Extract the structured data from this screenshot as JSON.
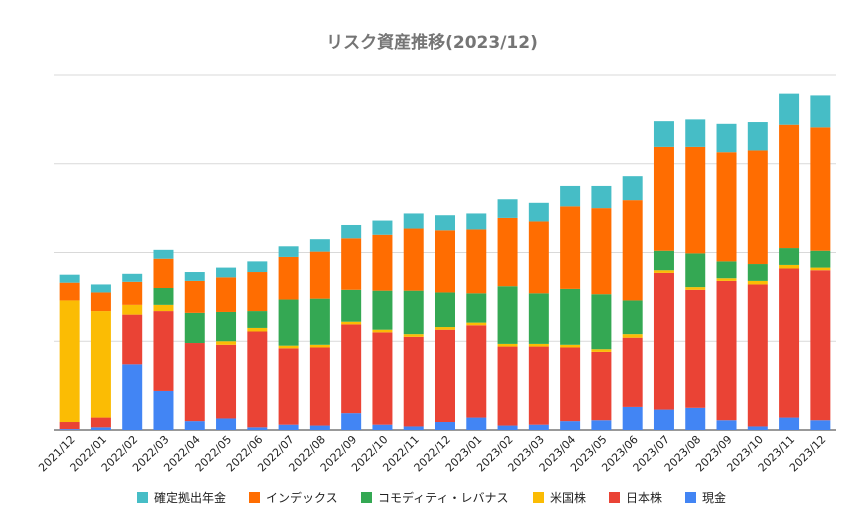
{
  "chart_data": {
    "type": "bar",
    "stacked": true,
    "title": "リスク資産推移(2023/12)",
    "y_axis_labels": "hidden",
    "grid": true,
    "legend_position": "bottom",
    "ylim": [
      0,
      400
    ],
    "categories": [
      "2021/12",
      "2022/01",
      "2022/02",
      "2022/03",
      "2022/04",
      "2022/05",
      "2022/06",
      "2022/07",
      "2022/08",
      "2022/09",
      "2022/10",
      "2022/11",
      "2022/12",
      "2023/01",
      "2023/02",
      "2023/03",
      "2023/04",
      "2023/05",
      "2023/06",
      "2023/07",
      "2023/08",
      "2023/09",
      "2023/10",
      "2023/11",
      "2023/12"
    ],
    "series": [
      {
        "name": "現金",
        "color": "#4285f4",
        "values": [
          1,
          3,
          74,
          44,
          10,
          13,
          3,
          6,
          5,
          19,
          6,
          4,
          9,
          14,
          5,
          6,
          10,
          11,
          26,
          23,
          25,
          11,
          4,
          14,
          11
        ]
      },
      {
        "name": "日本株",
        "color": "#ea4335",
        "values": [
          8,
          11,
          56,
          90,
          88,
          83,
          108,
          86,
          88,
          100,
          104,
          101,
          104,
          104,
          89,
          88,
          83,
          77,
          78,
          154,
          133,
          157,
          160,
          168,
          169
        ]
      },
      {
        "name": "米国株",
        "color": "#fbbc04",
        "values": [
          137,
          120,
          11,
          7,
          0,
          4,
          4,
          3,
          3,
          3,
          3,
          3,
          3,
          3,
          3,
          3,
          3,
          3,
          4,
          3,
          3,
          3,
          4,
          4,
          3
        ]
      },
      {
        "name": "コモディティ・レバナス",
        "color": "#34a853",
        "values": [
          0,
          0,
          0,
          19,
          34,
          33,
          19,
          52,
          52,
          36,
          44,
          49,
          39,
          33,
          65,
          57,
          63,
          62,
          38,
          22,
          38,
          19,
          19,
          19,
          19
        ]
      },
      {
        "name": "インデックス",
        "color": "#ff6d01",
        "values": [
          20,
          21,
          26,
          33,
          36,
          39,
          44,
          48,
          53,
          58,
          63,
          70,
          70,
          72,
          77,
          81,
          93,
          97,
          113,
          117,
          120,
          123,
          128,
          139,
          139
        ]
      },
      {
        "name": "確定拠出年金",
        "color": "#46bdc6",
        "values": [
          9,
          9,
          9,
          10,
          10,
          11,
          12,
          12,
          14,
          15,
          16,
          17,
          17,
          18,
          21,
          21,
          23,
          25,
          27,
          29,
          31,
          32,
          32,
          35,
          36
        ]
      }
    ],
    "legend_order": [
      "確定拠出年金",
      "インデックス",
      "コモディティ・レバナス",
      "米国株",
      "日本株",
      "現金"
    ]
  }
}
